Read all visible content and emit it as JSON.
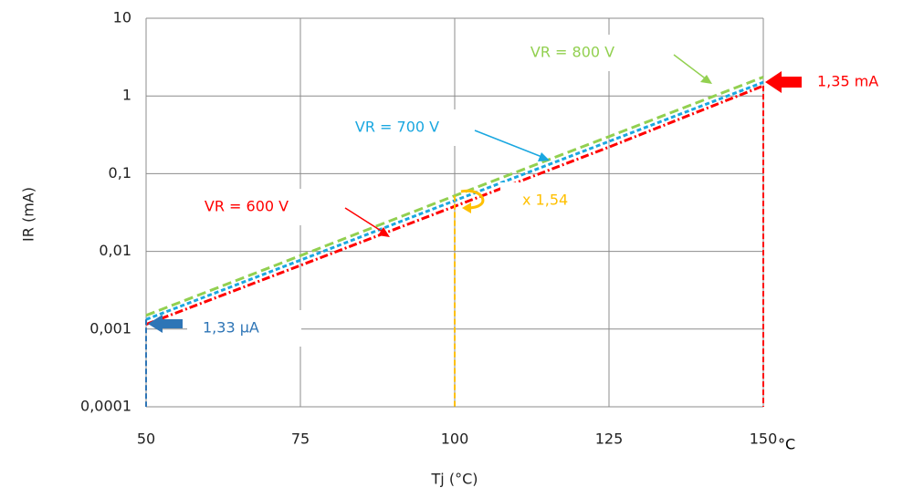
{
  "chart_data": {
    "type": "line",
    "x_label": "Tj (°C)",
    "y_label": "IR (mA)",
    "x": [
      50,
      75,
      100,
      125,
      150
    ],
    "xlim": [
      50,
      150
    ],
    "xticks": [
      50,
      75,
      100,
      125,
      150
    ],
    "ylim": [
      0.0001,
      10
    ],
    "log_y": true,
    "grid": true,
    "yticks": [
      {
        "value": 0.0001,
        "label": "0,0001"
      },
      {
        "value": 0.001,
        "label": "0,001"
      },
      {
        "value": 0.01,
        "label": "0,01"
      },
      {
        "value": 0.1,
        "label": "0,1"
      },
      1,
      10
    ],
    "series": [
      {
        "name": "VR = 600 V",
        "color": "#ff0000",
        "values": [
          0.00115,
          0.0066,
          0.038,
          0.22,
          1.35
        ]
      },
      {
        "name": "VR = 700 V",
        "color": "#1aa7e0",
        "values": [
          0.00133,
          0.0077,
          0.045,
          0.26,
          1.5
        ]
      },
      {
        "name": "VR = 800 V",
        "color": "#92d050",
        "values": [
          0.0015,
          0.0088,
          0.052,
          0.3,
          1.75
        ]
      }
    ],
    "annotations": [
      {
        "text": "1,35 mA",
        "color": "#ff0000"
      },
      {
        "text": "1,33 µA",
        "color": "#2e75b6"
      },
      {
        "text": "x 1,54",
        "color": "#ffc000"
      },
      {
        "text": "°C",
        "color": "#000000"
      }
    ]
  }
}
